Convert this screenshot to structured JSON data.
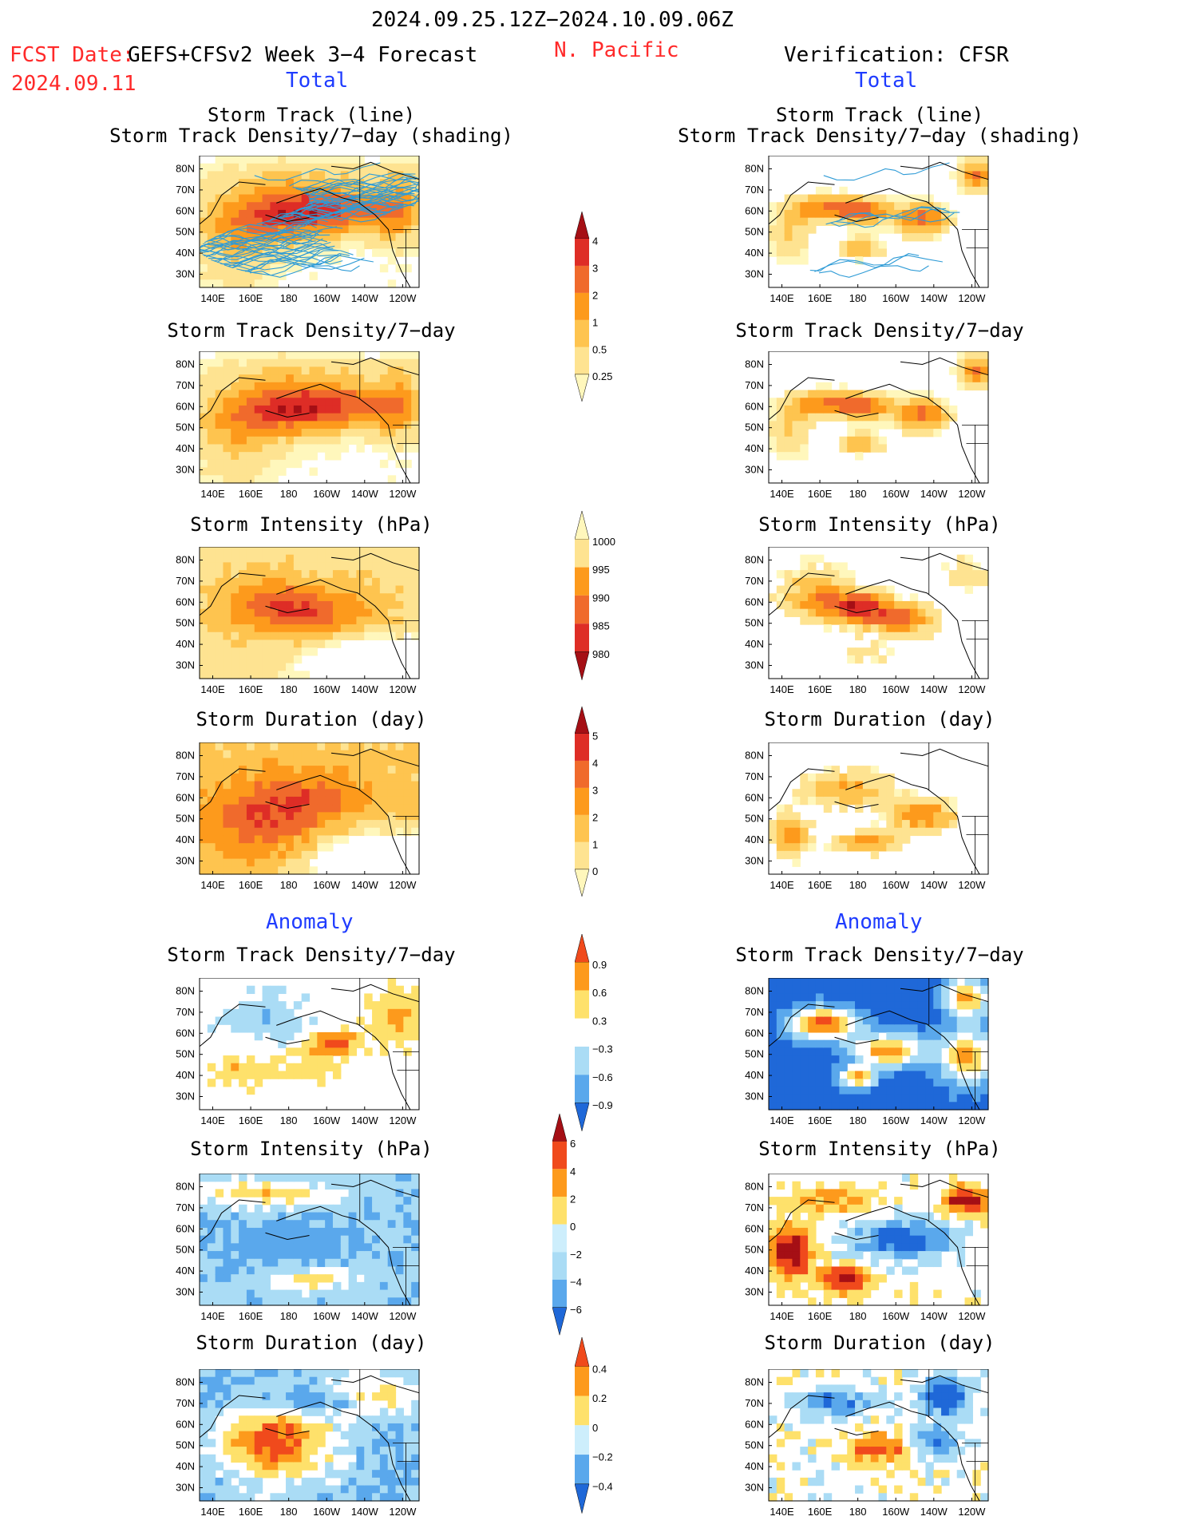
{
  "header": {
    "period": "2024.09.25.12Z−2024.10.09.06Z",
    "fcst_label": "FCST Date:",
    "fcst_model": "GEFS+CFSv2 Week 3−4 Forecast",
    "fcst_date": "2024.09.11",
    "region": "N. Pacific",
    "verification": "Verification: CFSR"
  },
  "sections": {
    "total_left": "Total",
    "total_right": "Total",
    "anomaly_left": "Anomaly",
    "anomaly_right": "Anomaly"
  },
  "panel_titles": {
    "track_line": "Storm Track (line)",
    "track_shading": "Storm Track Density/7−day (shading)",
    "density": "Storm Track Density/7−day",
    "intensity": "Storm Intensity (hPa)",
    "duration": "Storm Duration (day)"
  },
  "axes": {
    "lat_ticks": [
      "80N",
      "70N",
      "60N",
      "50N",
      "40N",
      "30N"
    ],
    "lon_ticks": [
      "140E",
      "160E",
      "180",
      "160W",
      "140W",
      "120W"
    ]
  },
  "colorbars": [
    {
      "id": "density_total",
      "labels": [
        "4",
        "3",
        "2",
        "1",
        "0.5",
        "0.25"
      ],
      "colors": [
        "#a50f15",
        "#de2d26",
        "#f06a2c",
        "#fd9a1c",
        "#fec44f",
        "#fee391",
        "#fff7bc"
      ]
    },
    {
      "id": "intensity_total",
      "labels": [
        "1000",
        "995",
        "990",
        "985",
        "980"
      ],
      "colors": [
        "#fff7bc",
        "#fee391",
        "#fd9a1c",
        "#f06a2c",
        "#de2d26",
        "#a50f15"
      ]
    },
    {
      "id": "duration_total",
      "labels": [
        "5",
        "4",
        "3",
        "2",
        "1",
        "0"
      ],
      "colors": [
        "#a50f15",
        "#de2d26",
        "#f06a2c",
        "#fd9a1c",
        "#fec44f",
        "#fee391",
        "#fff7bc"
      ]
    },
    {
      "id": "density_anom",
      "labels": [
        "0.9",
        "0.6",
        "0.3",
        "−0.3",
        "−0.6",
        "−0.9"
      ],
      "colors": [
        "#f04a1c",
        "#fd9a1c",
        "#fee16b",
        "#ffffff",
        "#aadcf5",
        "#5aa8ec",
        "#1f68d8"
      ]
    },
    {
      "id": "intensity_anom",
      "labels": [
        "6",
        "4",
        "2",
        "0",
        "−2",
        "−4",
        "−6"
      ],
      "colors": [
        "#a50f15",
        "#f04a1c",
        "#fd9a1c",
        "#fee16b",
        "#cdeefc",
        "#aadcf5",
        "#5aa8ec",
        "#1f68d8"
      ]
    },
    {
      "id": "duration_anom",
      "labels": [
        "0.4",
        "0.2",
        "0",
        "−0.2",
        "−0.4"
      ],
      "colors": [
        "#f04a1c",
        "#fd9a1c",
        "#fee16b",
        "#cdeefc",
        "#5aa8ec",
        "#1f68d8"
      ]
    }
  ],
  "colors": {
    "track_line": "#2e9bd6",
    "title_red": "#ff2a2a",
    "title_blue": "#1f3cff"
  }
}
